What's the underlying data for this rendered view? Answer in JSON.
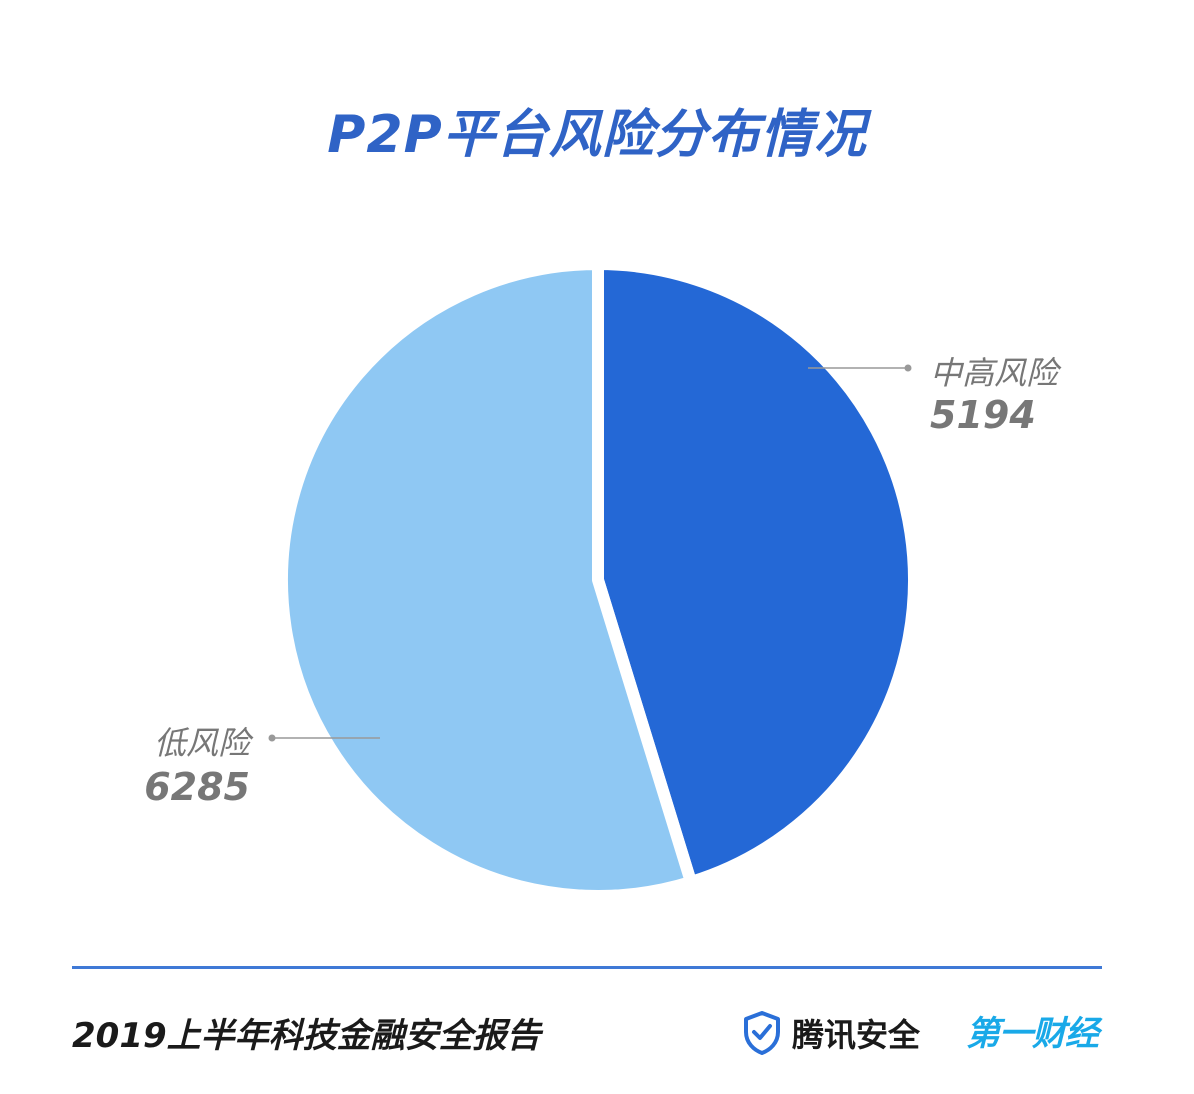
{
  "chart_data": {
    "type": "pie",
    "title": "P2P平台风险分布情况",
    "slices": [
      {
        "label": "中高风险",
        "value": 5194,
        "color": "#2468d6"
      },
      {
        "label": "低风险",
        "value": 6285,
        "color": "#8fc8f3"
      }
    ],
    "start_angle_deg": 0,
    "direction": "clockwise",
    "label_color": "#777777",
    "leader_color": "#999999"
  },
  "footer": {
    "report": "2019上半年科技金融安全报告",
    "brand_tencent": "腾讯安全",
    "brand_yicai": "第一财经",
    "brand_tencent_icon": "shield-check-icon",
    "divider_color": "#3f79d6"
  }
}
